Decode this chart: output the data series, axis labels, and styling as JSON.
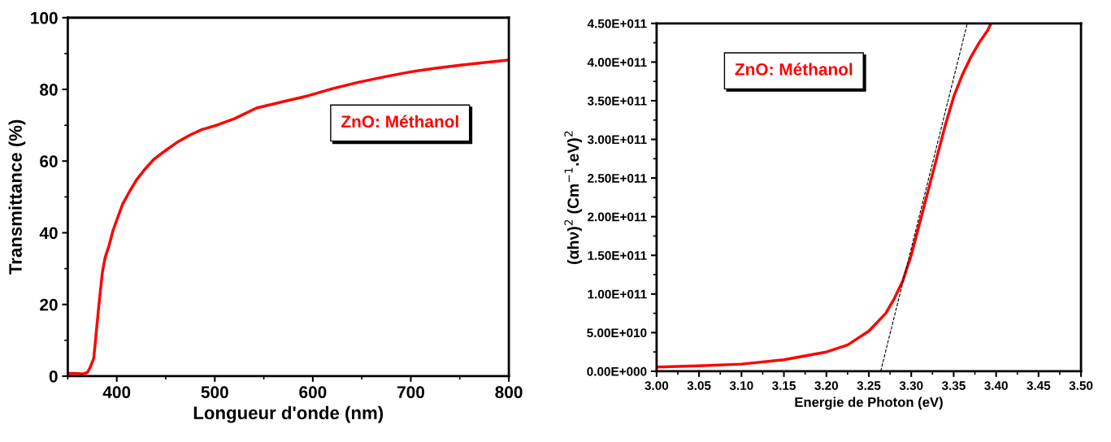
{
  "chart_data": [
    {
      "type": "line",
      "xlabel": "Longueur d'onde (nm)",
      "ylabel": "Transmittance (%)",
      "xlim": [
        350,
        800
      ],
      "ylim": [
        0,
        100
      ],
      "xticks": [
        400,
        500,
        600,
        700,
        800
      ],
      "yticks": [
        0,
        20,
        40,
        60,
        80,
        100
      ],
      "legend": "top right",
      "grid": false,
      "series": [
        {
          "name": "ZnO: Méthanol",
          "color": "#ff0000",
          "x": [
            350,
            360,
            365,
            370,
            373,
            376.5,
            379,
            381.8,
            385.3,
            388,
            392.3,
            396,
            401,
            406,
            413,
            420,
            428,
            437.7,
            450,
            462,
            475,
            487,
            497,
            504,
            520,
            542.5,
            570,
            595,
            620,
            647,
            675,
            700,
            725,
            752,
            775,
            800
          ],
          "values": [
            0.8,
            0.7,
            0.6,
            1.0,
            2.5,
            5,
            12,
            20,
            28.9,
            33,
            36.6,
            40.5,
            44.3,
            48,
            51.5,
            54.7,
            57.5,
            60.5,
            63,
            65.3,
            67.3,
            68.8,
            69.6,
            70.2,
            71.8,
            74.8,
            76.6,
            78.2,
            80.2,
            82,
            83.6,
            84.9,
            85.9,
            86.8,
            87.5,
            88.2
          ]
        }
      ]
    },
    {
      "type": "line",
      "xlabel": "Energie de Photon (eV)",
      "ylabel": "(αhν)$^{2}$ (Cm$^{−1}$.eV)$^{2}$",
      "xlim": [
        3.0,
        3.5
      ],
      "ylim": [
        0,
        450000000000
      ],
      "xticks": [
        {
          "value": 3.0,
          "label": "3.00"
        },
        {
          "value": 3.05,
          "label": "3.05"
        },
        {
          "value": 3.1,
          "label": "3.10"
        },
        {
          "value": 3.15,
          "label": "3.15"
        },
        {
          "value": 3.2,
          "label": "3.20"
        },
        {
          "value": 3.25,
          "label": "3.25"
        },
        {
          "value": 3.3,
          "label": "3.30"
        },
        {
          "value": 3.35,
          "label": "3.35"
        },
        {
          "value": 3.4,
          "label": "3.40"
        },
        {
          "value": 3.45,
          "label": "3.45"
        },
        {
          "value": 3.5,
          "label": "3.50"
        }
      ],
      "yticks": [
        {
          "value": 0,
          "label": "0.00E+000"
        },
        {
          "value": 50000000000,
          "label": "5.00E+010"
        },
        {
          "value": 100000000000,
          "label": "1.00E+011"
        },
        {
          "value": 150000000000,
          "label": "1.50E+011"
        },
        {
          "value": 200000000000,
          "label": "2.00E+011"
        },
        {
          "value": 250000000000,
          "label": "2.50E+011"
        },
        {
          "value": 300000000000,
          "label": "3.00E+011"
        },
        {
          "value": 350000000000,
          "label": "3.50E+011"
        },
        {
          "value": 400000000000,
          "label": "4.00E+011"
        },
        {
          "value": 450000000000,
          "label": "4.50E+011"
        }
      ],
      "legend": "top left",
      "grid": false,
      "series": [
        {
          "name": "ZnO: Méthanol",
          "color": "#ff0000",
          "x": [
            3.0,
            3.05,
            3.1,
            3.15,
            3.2,
            3.225,
            3.25,
            3.27,
            3.28,
            3.29,
            3.3,
            3.31,
            3.32,
            3.33,
            3.34,
            3.35,
            3.36,
            3.37,
            3.38,
            3.39,
            3.394
          ],
          "values": [
            5600000000,
            7000000000,
            9300000000,
            15000000000,
            25000000000,
            34000000000,
            52000000000,
            75000000000,
            94000000000,
            117000000000,
            150000000000,
            192000000000,
            234000000000,
            276000000000,
            318000000000,
            355000000000,
            383000000000,
            406000000000,
            425000000000,
            441000000000,
            450000000000
          ]
        },
        {
          "color": "#000000",
          "line_style": "dashed",
          "x": [
            3.264,
            3.366
          ],
          "values": [
            0,
            450000000000
          ]
        }
      ]
    }
  ]
}
